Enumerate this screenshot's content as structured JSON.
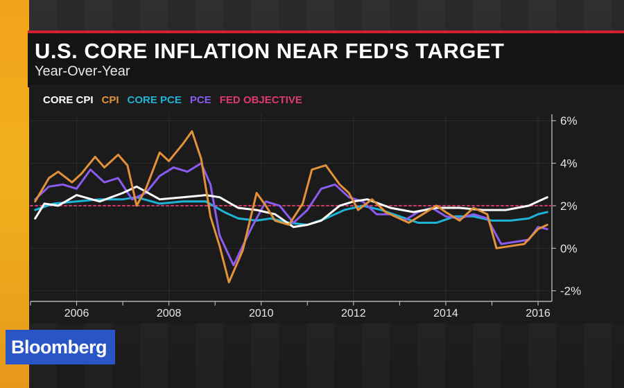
{
  "header": {
    "title": "U.S. CORE INFLATION NEAR FED'S TARGET",
    "subtitle": "Year-Over-Year"
  },
  "brand": {
    "logo_text": "Bloomberg"
  },
  "chart_data": {
    "type": "line",
    "title": "U.S. CORE INFLATION NEAR FED'S TARGET",
    "subtitle": "Year-Over-Year",
    "xlabel": "",
    "ylabel": "",
    "xlim": [
      2005.0,
      2016.3
    ],
    "ylim": [
      -2.5,
      6.3
    ],
    "x_ticks": [
      2006,
      2008,
      2010,
      2012,
      2014,
      2016
    ],
    "x_tick_labels": [
      "2006",
      "2008",
      "2010",
      "2012",
      "2014",
      "2016"
    ],
    "y_ticks": [
      6,
      4,
      2,
      0,
      -2
    ],
    "y_tick_labels": [
      "6%",
      "4%",
      "2%",
      "0%",
      "-2%"
    ],
    "grid": true,
    "legend_position": "top-left",
    "series": [
      {
        "name": "CORE CPI",
        "color": "#ffffff",
        "x": [
          2005.1,
          2005.3,
          2005.6,
          2006.0,
          2006.5,
          2007.0,
          2007.3,
          2007.8,
          2008.3,
          2008.8,
          2009.1,
          2009.5,
          2009.9,
          2010.3,
          2010.7,
          2011.0,
          2011.3,
          2011.7,
          2012.0,
          2012.3,
          2012.8,
          2013.3,
          2013.8,
          2014.3,
          2014.8,
          2015.3,
          2015.8,
          2016.0,
          2016.2
        ],
        "values": [
          1.4,
          2.1,
          2.0,
          2.5,
          2.2,
          2.6,
          2.9,
          2.3,
          2.4,
          2.5,
          2.4,
          1.9,
          1.8,
          1.6,
          1.0,
          1.1,
          1.3,
          2.0,
          2.2,
          2.3,
          1.9,
          1.7,
          1.9,
          1.9,
          1.8,
          1.8,
          2.0,
          2.2,
          2.4
        ]
      },
      {
        "name": "CPI",
        "color": "#e4923a",
        "x": [
          2005.1,
          2005.4,
          2005.6,
          2005.9,
          2006.1,
          2006.4,
          2006.6,
          2006.9,
          2007.1,
          2007.3,
          2007.5,
          2007.8,
          2008.0,
          2008.3,
          2008.5,
          2008.7,
          2008.9,
          2009.1,
          2009.3,
          2009.6,
          2009.9,
          2010.1,
          2010.3,
          2010.6,
          2010.9,
          2011.1,
          2011.4,
          2011.7,
          2011.9,
          2012.1,
          2012.4,
          2012.7,
          2012.9,
          2013.2,
          2013.5,
          2013.8,
          2014.0,
          2014.3,
          2014.6,
          2014.9,
          2015.1,
          2015.4,
          2015.7,
          2016.0,
          2016.2
        ],
        "values": [
          2.2,
          3.3,
          3.6,
          3.1,
          3.5,
          4.3,
          3.8,
          4.4,
          3.9,
          2.0,
          2.8,
          4.5,
          4.1,
          4.9,
          5.5,
          4.2,
          1.5,
          0.1,
          -1.6,
          -0.1,
          2.6,
          2.0,
          1.3,
          1.1,
          2.1,
          3.7,
          3.9,
          3.0,
          2.6,
          1.8,
          2.3,
          1.7,
          1.5,
          1.2,
          1.6,
          2.0,
          1.7,
          1.3,
          1.9,
          1.6,
          0.0,
          0.1,
          0.2,
          0.9,
          1.1
        ]
      },
      {
        "name": "CORE PCE",
        "color": "#1eb4d8",
        "x": [
          2005.1,
          2005.5,
          2006.0,
          2006.5,
          2007.0,
          2007.3,
          2007.8,
          2008.3,
          2008.8,
          2009.2,
          2009.5,
          2009.9,
          2010.2,
          2010.6,
          2011.0,
          2011.4,
          2011.8,
          2012.2,
          2012.6,
          2013.0,
          2013.4,
          2013.8,
          2014.2,
          2014.6,
          2015.0,
          2015.4,
          2015.8,
          2016.0,
          2016.2
        ],
        "values": [
          1.8,
          2.1,
          2.2,
          2.3,
          2.3,
          2.4,
          2.1,
          2.2,
          2.2,
          1.7,
          1.4,
          1.3,
          1.4,
          1.2,
          1.1,
          1.4,
          1.8,
          2.0,
          1.8,
          1.5,
          1.2,
          1.2,
          1.5,
          1.5,
          1.3,
          1.3,
          1.4,
          1.6,
          1.7
        ]
      },
      {
        "name": "PCE",
        "color": "#8a5cf0",
        "x": [
          2005.1,
          2005.4,
          2005.7,
          2006.0,
          2006.3,
          2006.6,
          2006.9,
          2007.2,
          2007.5,
          2007.8,
          2008.1,
          2008.4,
          2008.7,
          2008.9,
          2009.1,
          2009.4,
          2009.8,
          2010.1,
          2010.4,
          2010.7,
          2011.0,
          2011.3,
          2011.6,
          2011.9,
          2012.2,
          2012.5,
          2012.8,
          2013.1,
          2013.4,
          2013.7,
          2014.0,
          2014.3,
          2014.6,
          2014.9,
          2015.2,
          2015.5,
          2015.8,
          2016.0,
          2016.2
        ],
        "values": [
          2.3,
          2.9,
          3.0,
          2.8,
          3.7,
          3.1,
          3.3,
          2.3,
          2.6,
          3.4,
          3.8,
          3.6,
          4.0,
          3.0,
          0.6,
          -0.8,
          1.0,
          2.2,
          2.0,
          1.2,
          1.8,
          2.8,
          3.0,
          2.4,
          2.2,
          1.6,
          1.6,
          1.3,
          1.7,
          1.9,
          1.5,
          1.4,
          1.6,
          1.4,
          0.2,
          0.3,
          0.4,
          1.0,
          0.9
        ]
      },
      {
        "name": "FED OBJECTIVE",
        "color": "#e03a6e",
        "x": [
          2005.0,
          2016.3
        ],
        "values": [
          2.0,
          2.0
        ]
      }
    ]
  }
}
